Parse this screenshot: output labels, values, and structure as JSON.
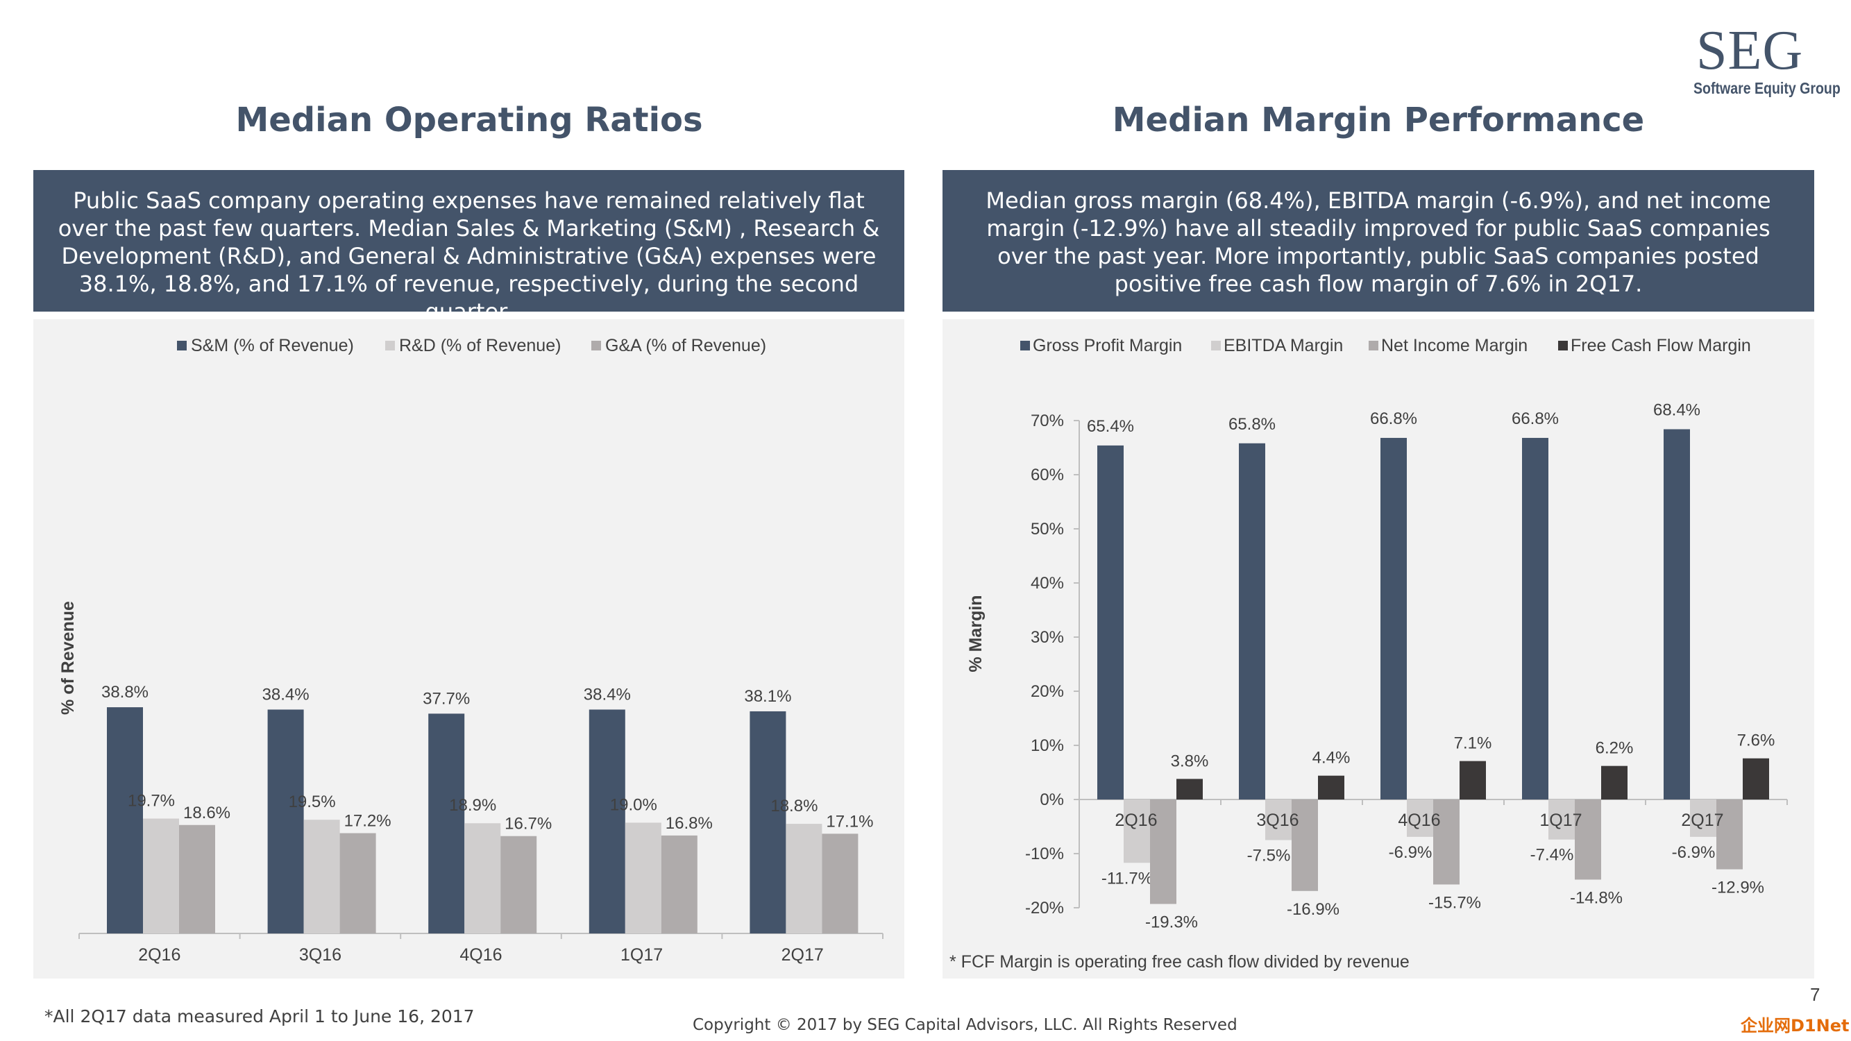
{
  "logo": {
    "main": "SEG",
    "sub": "Software Equity Group"
  },
  "left": {
    "title": "Median Operating Ratios",
    "description": "Public SaaS company operating expenses have remained relatively flat over the past few quarters. Median Sales & Marketing (S&M) , Research & Development (R&D), and General & Administrative (G&A) expenses were 38.1%, 18.8%, and 17.1% of revenue, respectively, during the second quarter."
  },
  "right": {
    "title": "Median Margin Performance",
    "description": "Median gross margin (68.4%), EBITDA margin (-6.9%), and net income margin (-12.9%) have all steadily improved for public SaaS companies over the past year. More importantly, public SaaS companies posted positive free cash flow margin of 7.6% in 2Q17.",
    "note": "* FCF Margin is operating free cash flow divided by revenue"
  },
  "footer": {
    "data_note": "*All 2Q17 data measured April 1 to June 16, 2017",
    "copyright": "Copyright © 2017 by SEG Capital Advisors, LLC. All Rights Reserved",
    "page_number": "7",
    "corner_logo": "企业网D1Net"
  },
  "chart_data": [
    {
      "type": "bar",
      "title": "",
      "xlabel": "",
      "ylabel": "% of Revenue",
      "categories": [
        "2Q16",
        "3Q16",
        "4Q16",
        "1Q17",
        "2Q17"
      ],
      "series": [
        {
          "name": "S&M (% of Revenue)",
          "color": "#44546a",
          "values": [
            38.8,
            38.4,
            37.7,
            38.4,
            38.1
          ],
          "labels": [
            "38.8%",
            "38.4%",
            "37.7%",
            "38.4%",
            "38.1%"
          ]
        },
        {
          "name": "R&D (% of Revenue)",
          "color": "#d0cece",
          "values": [
            19.7,
            19.5,
            18.9,
            19.0,
            18.8
          ],
          "labels": [
            "19.7%",
            "19.5%",
            "18.9%",
            "19.0%",
            "18.8%"
          ]
        },
        {
          "name": "G&A (% of Revenue)",
          "color": "#afabab",
          "values": [
            18.6,
            17.2,
            16.7,
            16.8,
            17.1
          ],
          "labels": [
            "18.6%",
            "17.2%",
            "16.7%",
            "16.8%",
            "17.1%"
          ]
        }
      ],
      "ylim": [
        0,
        50
      ],
      "y_axis_visible": false,
      "grid": false,
      "legend": "top"
    },
    {
      "type": "bar",
      "title": "",
      "xlabel": "",
      "ylabel": "% Margin",
      "categories": [
        "2Q16",
        "3Q16",
        "4Q16",
        "1Q17",
        "2Q17"
      ],
      "series": [
        {
          "name": "Gross Profit Margin",
          "color": "#44546a",
          "values": [
            65.4,
            65.8,
            66.8,
            66.8,
            68.4
          ],
          "labels": [
            "65.4%",
            "65.8%",
            "66.8%",
            "66.8%",
            "68.4%"
          ]
        },
        {
          "name": "EBITDA Margin",
          "color": "#d0cece",
          "values": [
            -11.7,
            -7.5,
            -6.9,
            -7.4,
            -6.9
          ],
          "labels": [
            "-11.7%",
            "-7.5%",
            "-6.9%",
            "-7.4%",
            "-6.9%"
          ]
        },
        {
          "name": "Net Income Margin",
          "color": "#afabab",
          "values": [
            -19.3,
            -16.9,
            -15.7,
            -14.8,
            -12.9
          ],
          "labels": [
            "-19.3%",
            "-16.9%",
            "-15.7%",
            "-14.8%",
            "-12.9%"
          ]
        },
        {
          "name": "Free Cash Flow Margin",
          "color": "#3b3838",
          "values": [
            3.8,
            4.4,
            7.1,
            6.2,
            7.6
          ],
          "labels": [
            "3.8%",
            "4.4%",
            "7.1%",
            "6.2%",
            "7.6%"
          ]
        }
      ],
      "ylim": [
        -20,
        70
      ],
      "yticks": [
        70,
        60,
        50,
        40,
        30,
        20,
        10,
        0,
        -10,
        -20
      ],
      "ytick_labels": [
        "70%",
        "60%",
        "50%",
        "40%",
        "30%",
        "20%",
        "10%",
        "0%",
        "-10%",
        "-20%"
      ],
      "grid": false,
      "legend": "top"
    }
  ]
}
